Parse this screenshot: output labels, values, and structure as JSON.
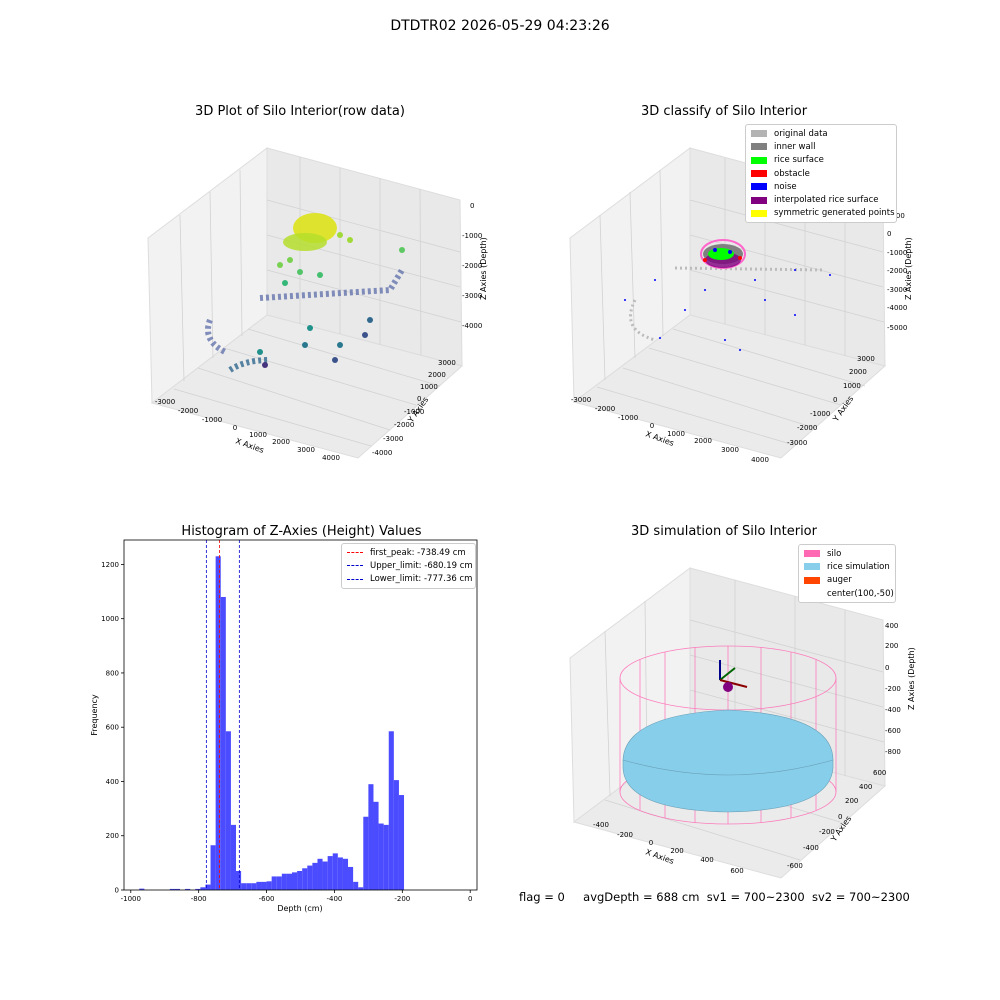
{
  "suptitle": "DTDTR02 2026-05-29 04:23:26",
  "plots": {
    "raw": {
      "title": "3D Plot of Silo Interior(row data)",
      "xlabel": "X Axies",
      "ylabel": "Y Axies",
      "zlabel": "Z Axies (Depth)",
      "xticks": [
        "-3000",
        "-2000",
        "-1000",
        "0",
        "1000",
        "2000",
        "3000",
        "4000"
      ],
      "yticks": [
        "-4000",
        "-3000",
        "-2000",
        "-1000",
        "0",
        "1000",
        "2000",
        "3000"
      ],
      "zticks": [
        "0",
        "-1000",
        "-2000",
        "-3000",
        "-4000"
      ]
    },
    "classify": {
      "title": "3D classify of Silo Interior",
      "xlabel": "X Axies",
      "ylabel": "Y Axies",
      "zlabel": "Z Axies (Depth)",
      "xticks": [
        "-3000",
        "-2000",
        "-1000",
        "0",
        "1000",
        "2000",
        "3000",
        "4000"
      ],
      "yticks": [
        "-3000",
        "-2000",
        "-1000",
        "0",
        "1000",
        "2000",
        "3000"
      ],
      "zticks": [
        "1000",
        "0",
        "-1000",
        "-2000",
        "-3000",
        "-4000",
        "-5000"
      ],
      "legend": [
        {
          "label": "original data",
          "color": "#b3b3b3"
        },
        {
          "label": "inner wall",
          "color": "#808080"
        },
        {
          "label": "rice surface",
          "color": "#00ff00"
        },
        {
          "label": "obstacle",
          "color": "#ff0000"
        },
        {
          "label": "noise",
          "color": "#0000ff"
        },
        {
          "label": "interpolated rice surface",
          "color": "#800080"
        },
        {
          "label": "symmetric generated points",
          "color": "#ffff00"
        }
      ]
    },
    "simulation": {
      "title": "3D simulation of Silo Interior",
      "xlabel": "X Axies",
      "ylabel": "Y Axies",
      "zlabel": "Z Axies (Depth)",
      "xticks": [
        "-400",
        "-200",
        "0",
        "200",
        "400",
        "600"
      ],
      "yticks": [
        "-600",
        "-400",
        "-200",
        "0",
        "200",
        "400",
        "600"
      ],
      "zticks": [
        "400",
        "200",
        "0",
        "-200",
        "-400",
        "-600",
        "-800"
      ],
      "legend": [
        {
          "label": "silo",
          "color": "#ff69b4"
        },
        {
          "label": "rice simulation",
          "color": "#87ceeb"
        },
        {
          "label": "auger",
          "color": "#ff4500"
        },
        {
          "label": "center(100,-50)",
          "color": ""
        }
      ]
    }
  },
  "footer": {
    "flag": "flag = 0",
    "avg": "avgDepth = 688 cm",
    "sv1": "sv1 = 700~2300",
    "sv2": "sv2 = 700~2300"
  },
  "chart_data": [
    {
      "type": "scatter",
      "title": "3D Plot of Silo Interior(row data)",
      "xlabel": "X Axies",
      "ylabel": "Y Axies",
      "zlabel": "Z Axies (Depth)",
      "xlim": [
        -3500,
        4300
      ],
      "ylim": [
        -4000,
        3500
      ],
      "zlim": [
        -4500,
        0
      ],
      "grid": true
    },
    {
      "type": "scatter",
      "title": "3D classify of Silo Interior",
      "xlabel": "X Axies",
      "ylabel": "Y Axies",
      "zlabel": "Z Axies (Depth)",
      "xlim": [
        -3500,
        4300
      ],
      "ylim": [
        -3500,
        3500
      ],
      "zlim": [
        -5500,
        1000
      ],
      "grid": true,
      "legend_position": "top-right",
      "series": [
        {
          "name": "original data"
        },
        {
          "name": "inner wall"
        },
        {
          "name": "rice surface"
        },
        {
          "name": "obstacle"
        },
        {
          "name": "noise"
        },
        {
          "name": "interpolated rice surface"
        },
        {
          "name": "symmetric generated points"
        }
      ]
    },
    {
      "type": "bar",
      "title": "Histogram of Z-Axies (Height) Values",
      "xlabel": "Depth (cm)",
      "ylabel": "Frequency",
      "xlim": [
        -1020,
        20
      ],
      "ylim": [
        0,
        1290
      ],
      "xticks": [
        -1000,
        -800,
        -600,
        -400,
        -200,
        0
      ],
      "yticks": [
        0,
        200,
        400,
        600,
        800,
        1000,
        1200
      ],
      "color": "#4b4bff",
      "bin_width": 15,
      "bins": [
        {
          "x": -975,
          "y": 5
        },
        {
          "x": -885,
          "y": 4
        },
        {
          "x": -870,
          "y": 4
        },
        {
          "x": -840,
          "y": 4
        },
        {
          "x": -810,
          "y": 4
        },
        {
          "x": -795,
          "y": 10
        },
        {
          "x": -780,
          "y": 20
        },
        {
          "x": -765,
          "y": 165
        },
        {
          "x": -750,
          "y": 1230
        },
        {
          "x": -735,
          "y": 1080
        },
        {
          "x": -720,
          "y": 585
        },
        {
          "x": -705,
          "y": 240
        },
        {
          "x": -690,
          "y": 70
        },
        {
          "x": -675,
          "y": 25
        },
        {
          "x": -660,
          "y": 25
        },
        {
          "x": -645,
          "y": 25
        },
        {
          "x": -630,
          "y": 30
        },
        {
          "x": -615,
          "y": 30
        },
        {
          "x": -600,
          "y": 32
        },
        {
          "x": -585,
          "y": 50
        },
        {
          "x": -570,
          "y": 50
        },
        {
          "x": -555,
          "y": 60
        },
        {
          "x": -540,
          "y": 60
        },
        {
          "x": -525,
          "y": 65
        },
        {
          "x": -510,
          "y": 70
        },
        {
          "x": -495,
          "y": 80
        },
        {
          "x": -480,
          "y": 90
        },
        {
          "x": -465,
          "y": 100
        },
        {
          "x": -450,
          "y": 115
        },
        {
          "x": -435,
          "y": 105
        },
        {
          "x": -420,
          "y": 125
        },
        {
          "x": -405,
          "y": 135
        },
        {
          "x": -390,
          "y": 120
        },
        {
          "x": -375,
          "y": 115
        },
        {
          "x": -360,
          "y": 85
        },
        {
          "x": -345,
          "y": 30
        },
        {
          "x": -330,
          "y": 10
        },
        {
          "x": -315,
          "y": 270
        },
        {
          "x": -300,
          "y": 390
        },
        {
          "x": -285,
          "y": 325
        },
        {
          "x": -270,
          "y": 245
        },
        {
          "x": -255,
          "y": 240
        },
        {
          "x": -240,
          "y": 585
        },
        {
          "x": -225,
          "y": 405
        },
        {
          "x": -210,
          "y": 350
        }
      ],
      "vlines": [
        {
          "name": "first_peak: -738.49 cm",
          "x": -738.49,
          "color": "#ff0000"
        },
        {
          "name": "Upper_limit: -680.19 cm",
          "x": -680.19,
          "color": "#0000cc"
        },
        {
          "name": "Lower_limit: -777.36 cm",
          "x": -777.36,
          "color": "#0000cc"
        }
      ],
      "legend_position": "top-right"
    },
    {
      "type": "scatter",
      "title": "3D simulation of Silo Interior",
      "xlabel": "X Axies",
      "ylabel": "Y Axies",
      "zlabel": "Z Axies (Depth)",
      "xlim": [
        -500,
        750
      ],
      "ylim": [
        -700,
        700
      ],
      "zlim": [
        -900,
        450
      ],
      "grid": true,
      "legend_position": "top-right",
      "series": [
        {
          "name": "silo"
        },
        {
          "name": "rice simulation"
        },
        {
          "name": "auger"
        },
        {
          "name": "center(100,-50)"
        }
      ]
    }
  ]
}
